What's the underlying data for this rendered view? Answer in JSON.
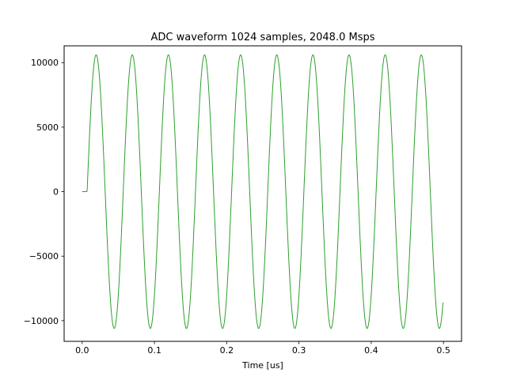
{
  "chart_data": {
    "type": "line",
    "title": "ADC waveform 1024 samples, 2048.0 Msps",
    "xlabel": "Time [us]",
    "ylabel": "",
    "xlim": [
      -0.025,
      0.525
    ],
    "ylim": [
      -11600,
      11300
    ],
    "xticks": [
      0.0,
      0.1,
      0.2,
      0.3,
      0.4,
      0.5
    ],
    "xtick_labels": [
      "0.0",
      "0.1",
      "0.2",
      "0.3",
      "0.4",
      "0.5"
    ],
    "yticks": [
      -10000,
      -5000,
      0,
      5000,
      10000
    ],
    "ytick_labels": [
      "−10000",
      "−5000",
      "0",
      "5000",
      "10000"
    ],
    "grid": false,
    "series": [
      {
        "color": "#2ca02c",
        "samples": 1024,
        "sample_rate_msps": 2048.0,
        "waveform": {
          "kind": "sine",
          "amplitude": 10600,
          "frequency_mhz": 20.0,
          "onset_us": 0.0068,
          "pre_onset_value": 0,
          "peak_times_us": [
            0.0193,
            0.0693,
            0.1193,
            0.1693,
            0.2193,
            0.2693,
            0.3193,
            0.3693,
            0.4193,
            0.4693
          ],
          "end_value": -8600
        }
      }
    ]
  }
}
